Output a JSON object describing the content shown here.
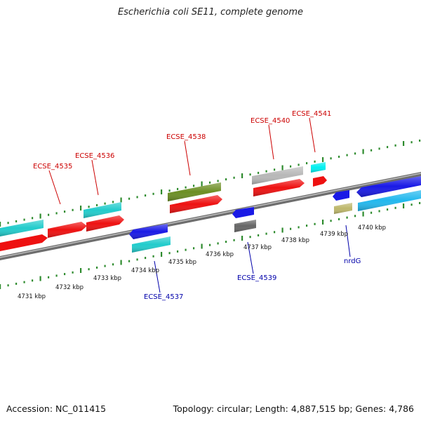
{
  "title": "Escherichia coli SE11, complete genome",
  "accession_text": "Accession: NC_011415",
  "summary_text": "Topology: circular; Length: 4,887,515 bp; Genes: 4,786",
  "colors": {
    "backbone": "#8a8a8a",
    "tick_green": "#2e8b2e",
    "red": "#ee1111",
    "cyan": "#22cccc",
    "blue": "#1a1ae6",
    "olive": "#6b8e23",
    "gray": "#b8b8b8",
    "darkgray": "#666666",
    "khaki": "#bdb76b",
    "aqua": "#00f0f0",
    "skyblue": "#22b8ee",
    "label_top": "#cc0000",
    "label_bottom": "#0000aa"
  },
  "kbp_ticks": [
    "4731 kbp",
    "4732 kbp",
    "4733 kbp",
    "4734 kbp",
    "4735 kbp",
    "4736 kbp",
    "4737 kbp",
    "4738 kbp",
    "4739 kbp",
    "4740 kbp"
  ],
  "top_labels": [
    "ECSE_4535",
    "ECSE_4536",
    "ECSE_4538",
    "ECSE_4540",
    "ECSE_4541"
  ],
  "bottom_labels": [
    "ECSE_4537",
    "ECSE_4539",
    "nrdG"
  ]
}
